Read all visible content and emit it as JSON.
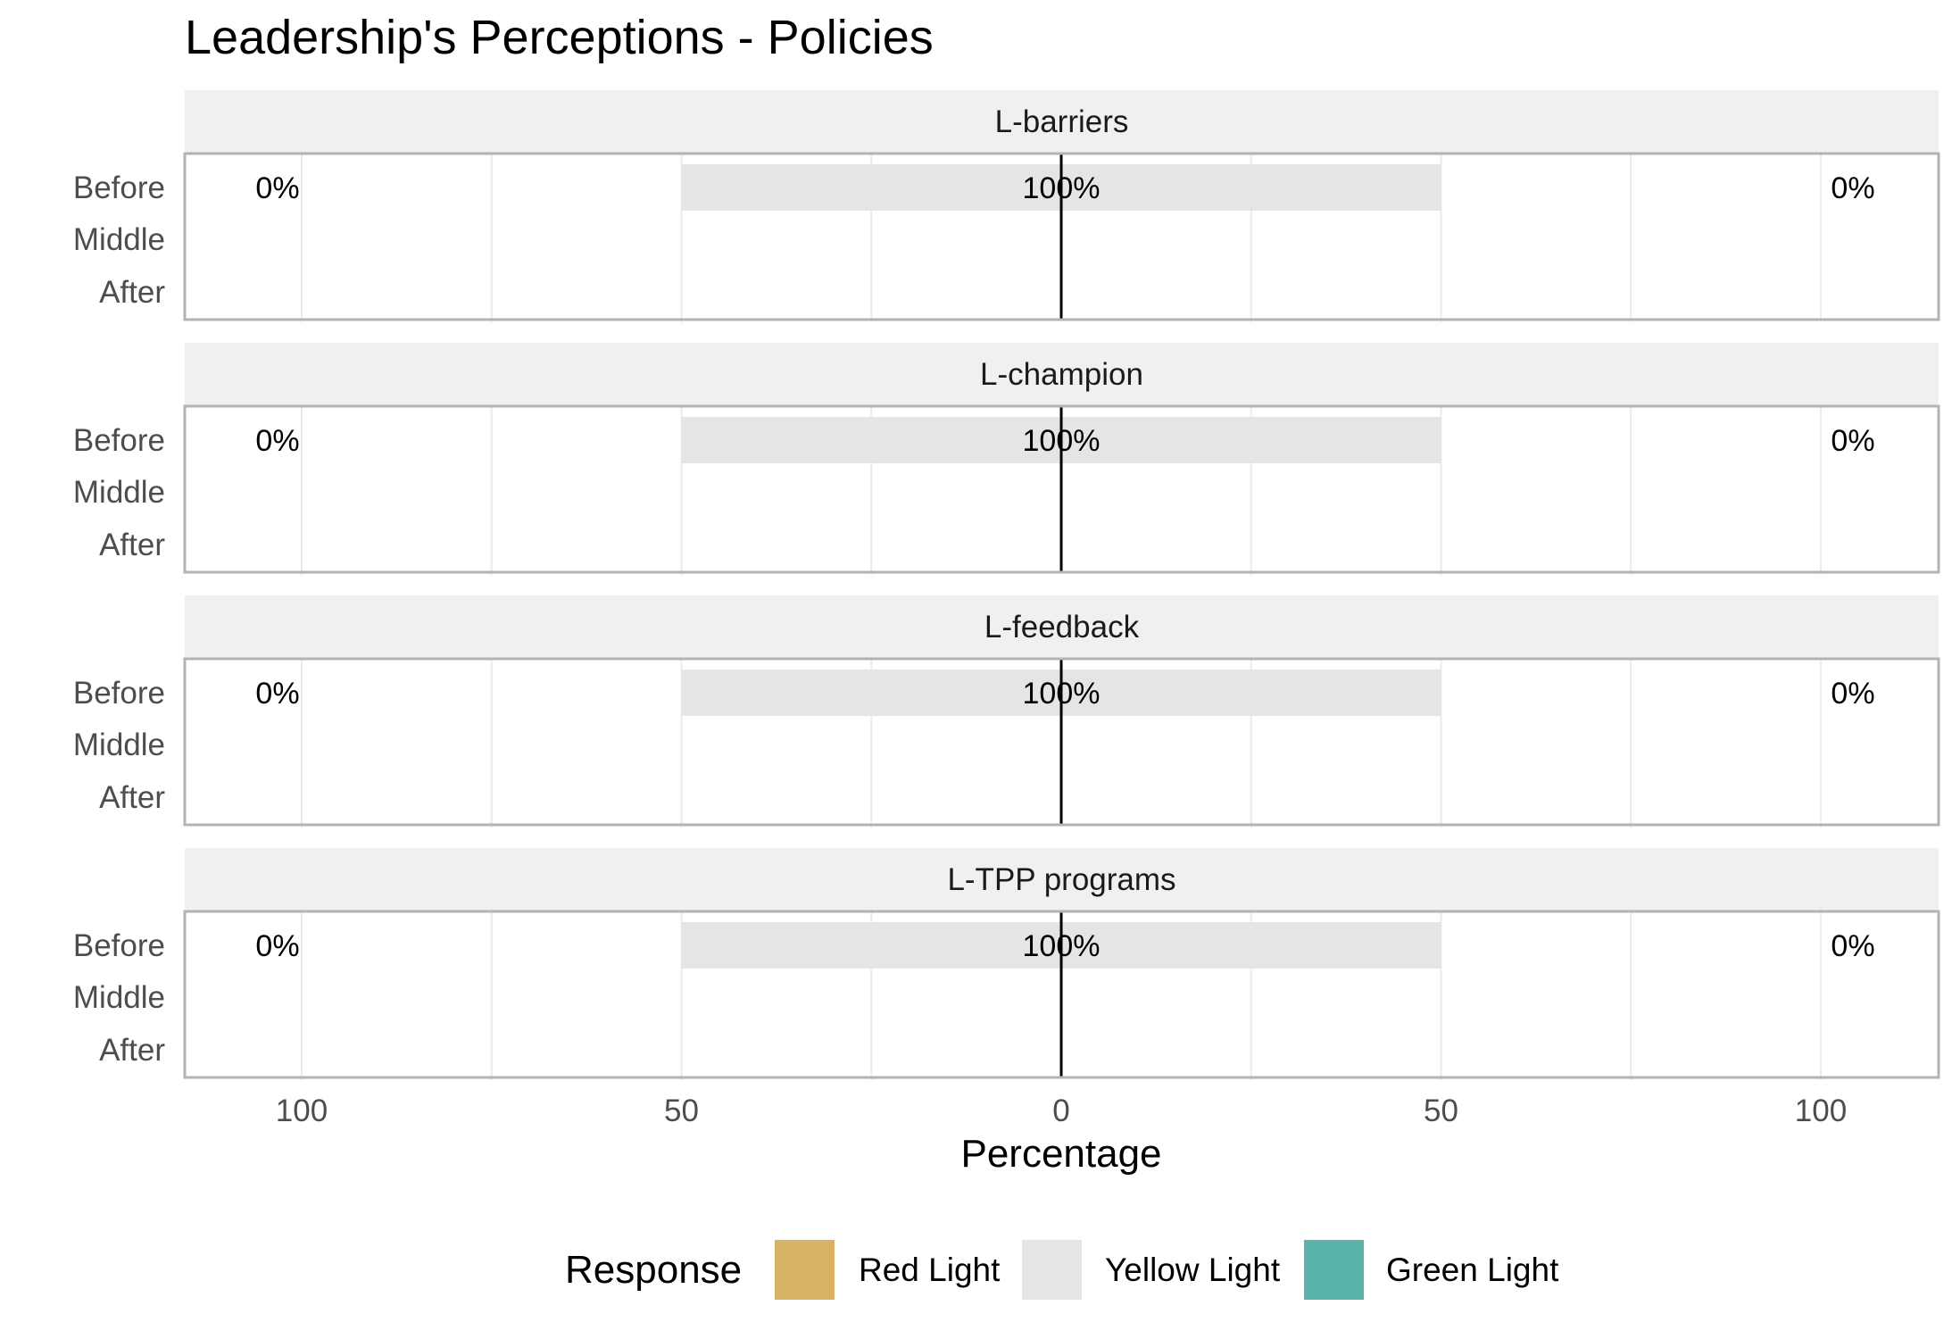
{
  "chart_data": {
    "type": "bar",
    "orientation": "horizontal",
    "stacking": "diverging",
    "title": "Leadership's Perceptions - Policies",
    "xlabel": "Percentage",
    "ylabel": "",
    "xlim": [
      -100,
      100
    ],
    "x_ticks": [
      -100,
      -50,
      0,
      50,
      100
    ],
    "x_tick_labels": [
      "100",
      "50",
      "0",
      "50",
      "100"
    ],
    "grid": true,
    "categories": [
      "Before",
      "Middle",
      "After"
    ],
    "legend": {
      "title": "Response",
      "position": "bottom",
      "items": [
        {
          "label": "Red Light",
          "color": "#D8B365"
        },
        {
          "label": "Yellow Light",
          "color": "#E5E5E5"
        },
        {
          "label": "Green Light",
          "color": "#5AB4AC"
        }
      ]
    },
    "panels": [
      {
        "name": "L-barriers",
        "rows": [
          {
            "category": "Before",
            "red": 0,
            "yellow": 100,
            "green": 0,
            "left_label": "0%",
            "center_label": "100%",
            "right_label": "0%"
          },
          {
            "category": "Middle"
          },
          {
            "category": "After"
          }
        ]
      },
      {
        "name": "L-champion",
        "rows": [
          {
            "category": "Before",
            "red": 0,
            "yellow": 100,
            "green": 0,
            "left_label": "0%",
            "center_label": "100%",
            "right_label": "0%"
          },
          {
            "category": "Middle"
          },
          {
            "category": "After"
          }
        ]
      },
      {
        "name": "L-feedback",
        "rows": [
          {
            "category": "Before",
            "red": 0,
            "yellow": 100,
            "green": 0,
            "left_label": "0%",
            "center_label": "100%",
            "right_label": "0%"
          },
          {
            "category": "Middle"
          },
          {
            "category": "After"
          }
        ]
      },
      {
        "name": "L-TPP programs",
        "rows": [
          {
            "category": "Before",
            "red": 0,
            "yellow": 100,
            "green": 0,
            "left_label": "0%",
            "center_label": "100%",
            "right_label": "0%"
          },
          {
            "category": "Middle"
          },
          {
            "category": "After"
          }
        ]
      }
    ]
  }
}
